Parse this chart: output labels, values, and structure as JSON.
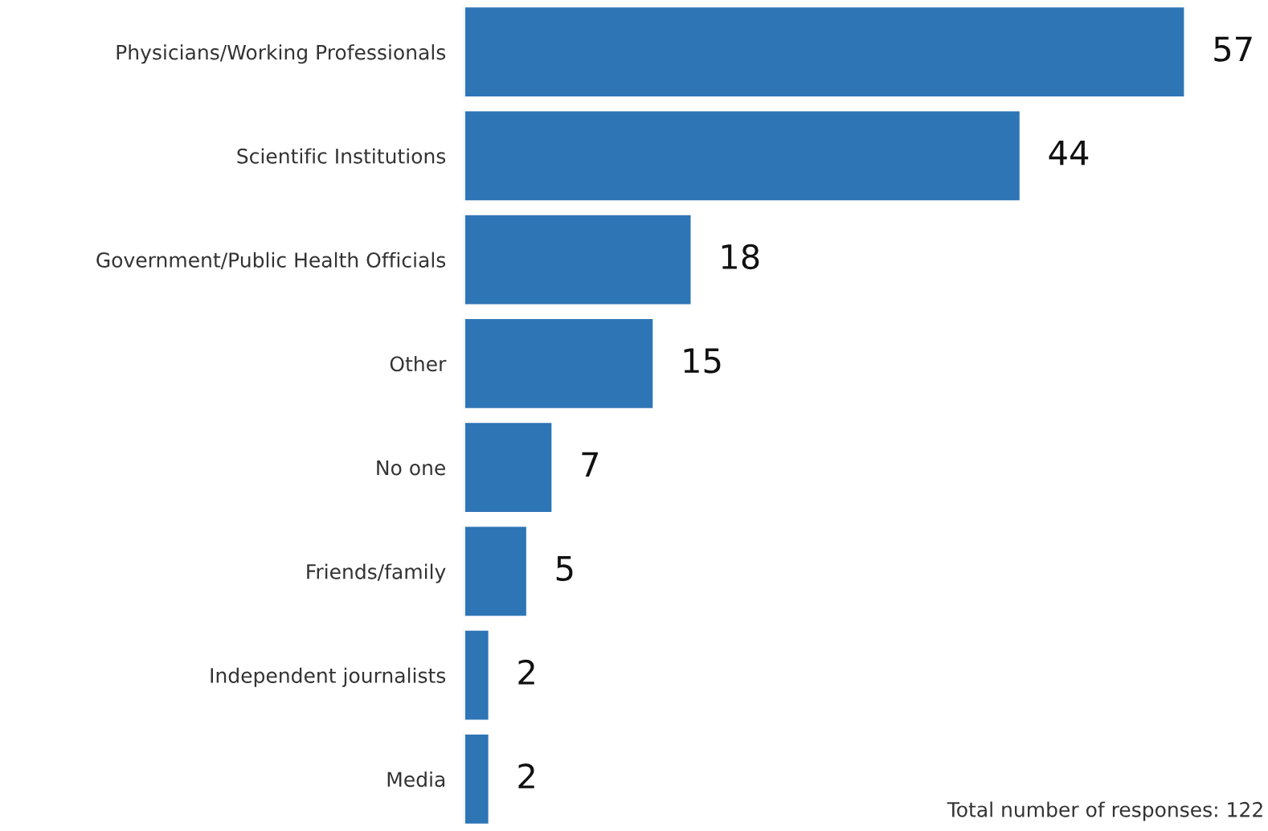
{
  "chart_data": {
    "type": "bar",
    "orientation": "horizontal",
    "categories": [
      "Physicians/Working Professionals",
      "Scientific Institutions",
      "Government/Public Health Officials",
      "Other",
      "No one",
      "Friends/family",
      "Independent journalists",
      "Media"
    ],
    "values": [
      57,
      44,
      18,
      15,
      7,
      5,
      2,
      2
    ],
    "color": "#2e75b6",
    "data_labels": true,
    "tick_labels": "y",
    "grid": false,
    "legend": false,
    "annotations": [
      "Total number of responses: 122"
    ]
  }
}
